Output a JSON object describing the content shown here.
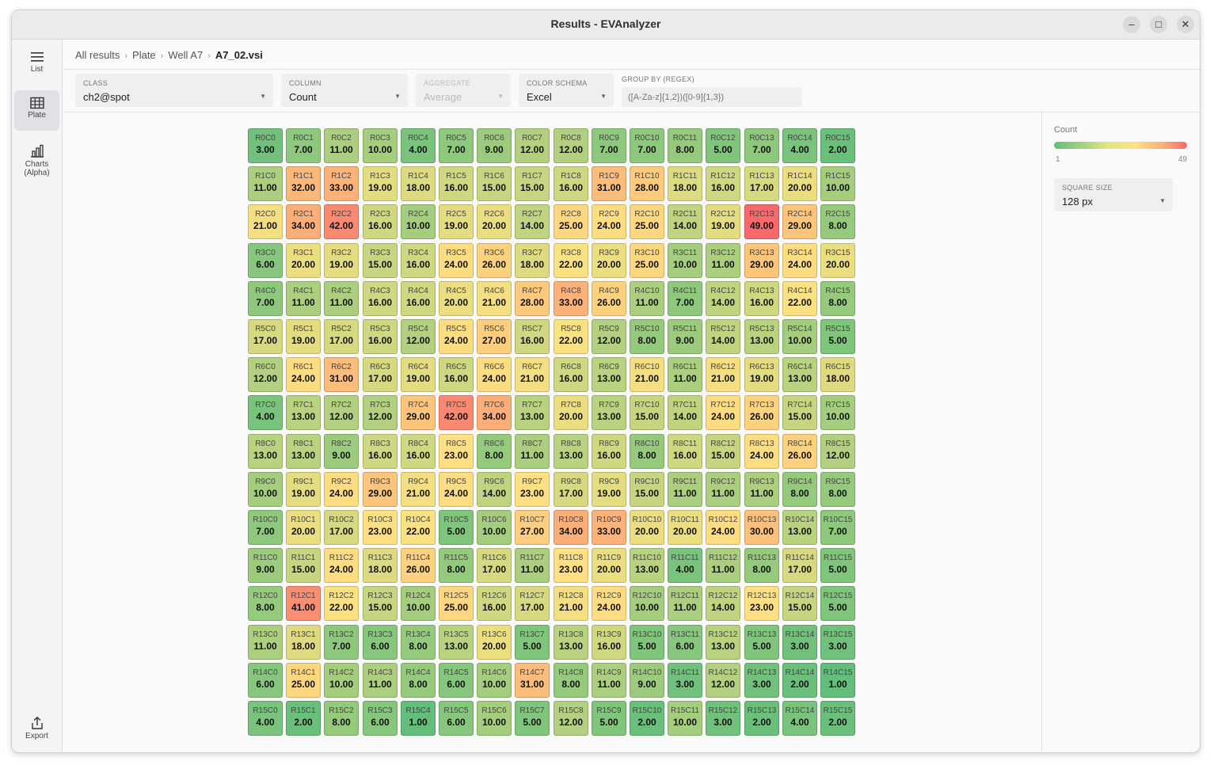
{
  "window": {
    "title": "Results - EVAnalyzer"
  },
  "titlebar_buttons": {
    "minimize": "–",
    "maximize": "□",
    "close": "✕"
  },
  "sidebar": {
    "items": [
      {
        "label": "List",
        "icon": "list-icon"
      },
      {
        "label": "Plate",
        "icon": "grid-icon"
      },
      {
        "label": "Charts (Alpha)",
        "icon": "bar-chart-icon"
      }
    ],
    "export_label": "Export"
  },
  "breadcrumb": [
    "All results",
    "Plate",
    "Well A7",
    "A7_02.vsi"
  ],
  "controls": {
    "class": {
      "label": "CLASS",
      "value": "ch2@spot"
    },
    "column": {
      "label": "COLUMN",
      "value": "Count"
    },
    "aggregate": {
      "label": "AGGREGATE",
      "value": "Average"
    },
    "color_schema": {
      "label": "COLOR SCHEMA",
      "value": "Excel"
    },
    "group_by": {
      "label": "GROUP BY (REGEX)",
      "placeholder": "([A-Za-z]{1,2})([0-9]{1,3})"
    }
  },
  "legend": {
    "title": "Count",
    "min": "1",
    "max": "49",
    "colors": {
      "low": "#63be7b",
      "mid": "#fee282",
      "high": "#f8696b"
    }
  },
  "square_size": {
    "label": "SQUARE SIZE",
    "value": "128 px"
  },
  "plate": {
    "values": [
      [
        3,
        7,
        11,
        10,
        4,
        7,
        9,
        12,
        12,
        7,
        7,
        8,
        5,
        7,
        4,
        2
      ],
      [
        11,
        32,
        33,
        19,
        18,
        16,
        15,
        15,
        16,
        31,
        28,
        18,
        16,
        17,
        20,
        10
      ],
      [
        21,
        34,
        42,
        16,
        10,
        19,
        20,
        14,
        25,
        24,
        25,
        14,
        19,
        49,
        29,
        8
      ],
      [
        6,
        20,
        19,
        15,
        16,
        24,
        26,
        18,
        22,
        20,
        25,
        10,
        11,
        29,
        24,
        20
      ],
      [
        7,
        11,
        11,
        16,
        16,
        20,
        21,
        28,
        33,
        26,
        11,
        7,
        14,
        16,
        22,
        8
      ],
      [
        17,
        19,
        17,
        16,
        12,
        24,
        27,
        16,
        22,
        12,
        8,
        9,
        14,
        13,
        10,
        5
      ],
      [
        12,
        24,
        31,
        17,
        19,
        16,
        24,
        21,
        16,
        13,
        21,
        11,
        21,
        19,
        13,
        18
      ],
      [
        4,
        13,
        12,
        12,
        29,
        42,
        34,
        13,
        20,
        13,
        15,
        14,
        24,
        26,
        15,
        10
      ],
      [
        13,
        13,
        9,
        16,
        16,
        23,
        8,
        11,
        13,
        16,
        8,
        16,
        15,
        24,
        26,
        12
      ],
      [
        10,
        19,
        24,
        29,
        21,
        24,
        14,
        23,
        17,
        19,
        15,
        11,
        11,
        11,
        8,
        8
      ],
      [
        7,
        20,
        17,
        23,
        22,
        5,
        10,
        27,
        34,
        33,
        20,
        20,
        24,
        30,
        13,
        7
      ],
      [
        9,
        15,
        24,
        18,
        26,
        8,
        17,
        11,
        23,
        20,
        13,
        4,
        11,
        8,
        17,
        5
      ],
      [
        8,
        41,
        22,
        15,
        10,
        25,
        16,
        17,
        21,
        24,
        10,
        11,
        14,
        23,
        15,
        5
      ],
      [
        11,
        18,
        7,
        6,
        8,
        13,
        20,
        5,
        13,
        16,
        5,
        6,
        13,
        5,
        3,
        3
      ],
      [
        6,
        25,
        10,
        11,
        8,
        6,
        10,
        31,
        8,
        11,
        9,
        3,
        12,
        3,
        2,
        1
      ],
      [
        4,
        2,
        8,
        6,
        1,
        6,
        10,
        5,
        12,
        5,
        2,
        10,
        3,
        2,
        4,
        2
      ]
    ]
  }
}
